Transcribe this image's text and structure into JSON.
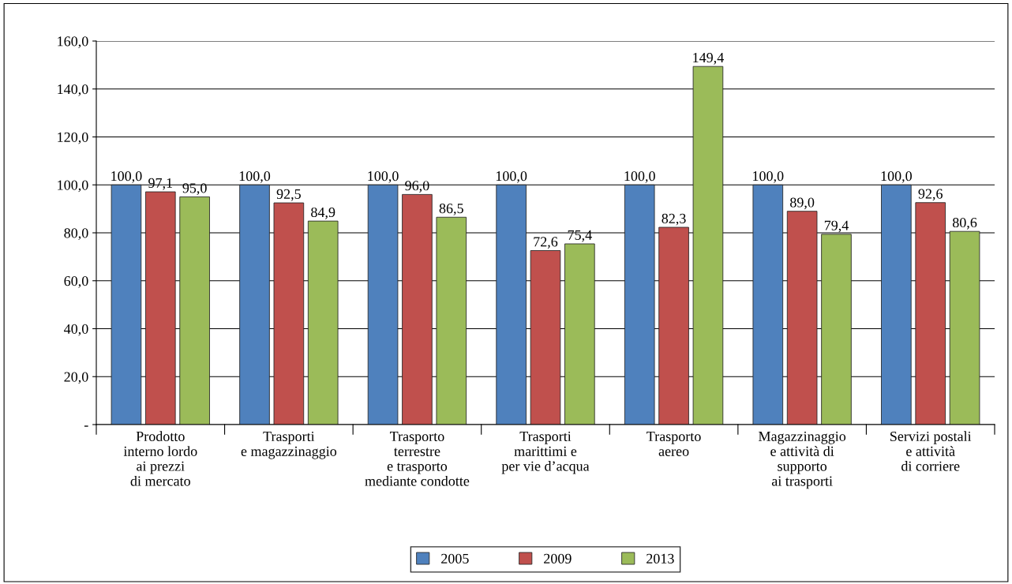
{
  "chart_data": {
    "type": "bar",
    "categories": [
      "Prodotto\ninterno lordo\nai prezzi\ndi mercato",
      "Trasporti\ne magazzinaggio",
      "Trasporto\nterrestre\ne trasporto\nmediante condotte",
      "Trasporti\nmarittimi e\nper vie d’acqua",
      "Trasporto\naereo",
      "Magazzinaggio\ne attività di\nsupporto\nai trasporti",
      "Servizi postali\ne attività\ndi corriere"
    ],
    "series": [
      {
        "name": "2005",
        "color": "#4f81bd",
        "values": [
          100.0,
          100.0,
          100.0,
          100.0,
          100.0,
          100.0,
          100.0
        ],
        "value_labels": [
          "100,0",
          "100,0",
          "100,0",
          "100,0",
          "100,0",
          "100,0",
          "100,0"
        ]
      },
      {
        "name": "2009",
        "color": "#c0504d",
        "values": [
          97.1,
          92.5,
          96.0,
          72.6,
          82.3,
          89.0,
          92.6
        ],
        "value_labels": [
          "97,1",
          "92,5",
          "96,0",
          "72,6",
          "82,3",
          "89,0",
          "92,6"
        ]
      },
      {
        "name": "2013",
        "color": "#9bbb59",
        "values": [
          95.0,
          84.9,
          86.5,
          75.4,
          149.4,
          79.4,
          80.6
        ],
        "value_labels": [
          "95,0",
          "84,9",
          "86,5",
          "75,4",
          "149,4",
          "79,4",
          "80,6"
        ]
      }
    ],
    "ylim": [
      0,
      160
    ],
    "yticks": [
      {
        "value": 0,
        "label": "-"
      },
      {
        "value": 20,
        "label": "20,0"
      },
      {
        "value": 40,
        "label": "40,0"
      },
      {
        "value": 60,
        "label": "60,0"
      },
      {
        "value": 80,
        "label": "80,0"
      },
      {
        "value": 100,
        "label": "100,0"
      },
      {
        "value": 120,
        "label": "120,0"
      },
      {
        "value": 140,
        "label": "140,0"
      },
      {
        "value": 160,
        "label": "160,0"
      }
    ],
    "grid": "y",
    "legend": "bottom"
  }
}
